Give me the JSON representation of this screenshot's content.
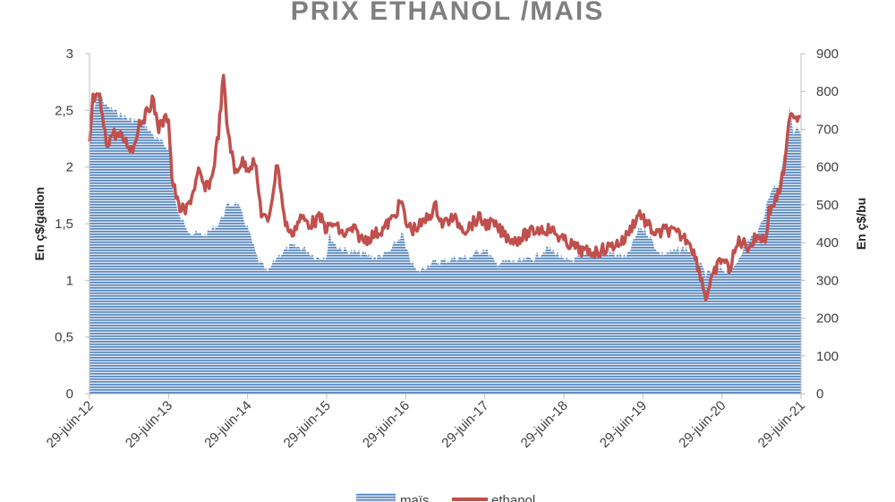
{
  "chart_data": {
    "type": "line",
    "title": "PRIX ETHANOL /MAÏS",
    "x_tick_labels": [
      "29-juin-12",
      "29-juin-13",
      "29-juin-14",
      "29-juin-15",
      "29-juin-16",
      "29-juin-17",
      "29-juin-18",
      "29-juin-19",
      "29-juin-20",
      "29-juin-21"
    ],
    "x_range": [
      "2012-06-29",
      "2021-06-29"
    ],
    "left_axis": {
      "label": "En ç$/gallon",
      "range": [
        0,
        3
      ],
      "ticks": [
        "0",
        "0,5",
        "1",
        "1,5",
        "2",
        "2,5",
        "3"
      ]
    },
    "right_axis": {
      "label": "En ç$/bu",
      "range": [
        0,
        900
      ],
      "ticks": [
        "0",
        "100",
        "200",
        "300",
        "400",
        "500",
        "600",
        "700",
        "800",
        "900"
      ]
    },
    "grid": false,
    "legend_position": "bottom",
    "series": [
      {
        "name": "maïs",
        "kind": "area",
        "axis": "right",
        "color": "#4f81bd",
        "points": [
          [
            "2012-06-29",
            700
          ],
          [
            "2012-08-10",
            800
          ],
          [
            "2012-09-15",
            760
          ],
          [
            "2012-11-01",
            745
          ],
          [
            "2013-01-01",
            725
          ],
          [
            "2013-03-01",
            720
          ],
          [
            "2013-05-01",
            675
          ],
          [
            "2013-06-29",
            650
          ],
          [
            "2013-07-20",
            540
          ],
          [
            "2013-08-15",
            470
          ],
          [
            "2013-10-15",
            425
          ],
          [
            "2013-12-15",
            420
          ],
          [
            "2014-02-15",
            450
          ],
          [
            "2014-04-01",
            500
          ],
          [
            "2014-05-10",
            505
          ],
          [
            "2014-06-29",
            440
          ],
          [
            "2014-08-15",
            355
          ],
          [
            "2014-09-30",
            320
          ],
          [
            "2014-11-15",
            365
          ],
          [
            "2015-01-15",
            390
          ],
          [
            "2015-03-15",
            385
          ],
          [
            "2015-05-15",
            360
          ],
          [
            "2015-06-29",
            365
          ],
          [
            "2015-07-10",
            420
          ],
          [
            "2015-08-15",
            390
          ],
          [
            "2015-10-15",
            375
          ],
          [
            "2015-12-15",
            370
          ],
          [
            "2016-02-15",
            360
          ],
          [
            "2016-04-15",
            375
          ],
          [
            "2016-06-15",
            425
          ],
          [
            "2016-06-29",
            380
          ],
          [
            "2016-08-20",
            320
          ],
          [
            "2016-10-15",
            345
          ],
          [
            "2016-12-15",
            350
          ],
          [
            "2017-02-15",
            360
          ],
          [
            "2017-04-15",
            360
          ],
          [
            "2017-06-29",
            385
          ],
          [
            "2017-08-15",
            345
          ],
          [
            "2017-10-15",
            350
          ],
          [
            "2017-12-15",
            350
          ],
          [
            "2018-02-15",
            360
          ],
          [
            "2018-04-15",
            385
          ],
          [
            "2018-06-01",
            370
          ],
          [
            "2018-06-29",
            350
          ],
          [
            "2018-08-20",
            355
          ],
          [
            "2018-10-15",
            365
          ],
          [
            "2018-12-15",
            375
          ],
          [
            "2019-02-15",
            370
          ],
          [
            "2019-04-15",
            360
          ],
          [
            "2019-06-15",
            440
          ],
          [
            "2019-07-15",
            430
          ],
          [
            "2019-09-15",
            370
          ],
          [
            "2019-11-15",
            375
          ],
          [
            "2020-01-15",
            385
          ],
          [
            "2020-03-15",
            345
          ],
          [
            "2020-04-15",
            315
          ],
          [
            "2020-06-29",
            330
          ],
          [
            "2020-08-15",
            320
          ],
          [
            "2020-10-15",
            400
          ],
          [
            "2020-12-15",
            430
          ],
          [
            "2021-02-15",
            545
          ],
          [
            "2021-03-15",
            555
          ],
          [
            "2021-04-15",
            640
          ],
          [
            "2021-05-07",
            760
          ],
          [
            "2021-05-25",
            680
          ],
          [
            "2021-06-10",
            700
          ],
          [
            "2021-06-29",
            680
          ]
        ]
      },
      {
        "name": "ethanol",
        "kind": "line",
        "axis": "left",
        "color": "#c0504d",
        "points": [
          [
            "2012-06-29",
            2.2
          ],
          [
            "2012-07-15",
            2.6
          ],
          [
            "2012-08-15",
            2.6
          ],
          [
            "2012-09-15",
            2.2
          ],
          [
            "2012-10-15",
            2.3
          ],
          [
            "2012-12-01",
            2.25
          ],
          [
            "2013-01-15",
            2.15
          ],
          [
            "2013-02-15",
            2.4
          ],
          [
            "2013-03-15",
            2.45
          ],
          [
            "2013-04-15",
            2.6
          ],
          [
            "2013-05-15",
            2.35
          ],
          [
            "2013-06-29",
            2.45
          ],
          [
            "2013-07-15",
            1.9
          ],
          [
            "2013-08-15",
            1.65
          ],
          [
            "2013-09-15",
            1.6
          ],
          [
            "2013-10-15",
            1.75
          ],
          [
            "2013-11-15",
            1.95
          ],
          [
            "2013-12-15",
            1.8
          ],
          [
            "2014-01-15",
            1.9
          ],
          [
            "2014-02-15",
            2.3
          ],
          [
            "2014-03-10",
            2.8
          ],
          [
            "2014-03-25",
            2.4
          ],
          [
            "2014-05-01",
            1.95
          ],
          [
            "2014-06-01",
            2.05
          ],
          [
            "2014-06-29",
            2.0
          ],
          [
            "2014-08-01",
            2.05
          ],
          [
            "2014-09-01",
            1.6
          ],
          [
            "2014-10-01",
            1.5
          ],
          [
            "2014-11-15",
            2.05
          ],
          [
            "2014-12-15",
            1.55
          ],
          [
            "2015-01-15",
            1.4
          ],
          [
            "2015-03-01",
            1.55
          ],
          [
            "2015-04-15",
            1.5
          ],
          [
            "2015-06-01",
            1.55
          ],
          [
            "2015-06-29",
            1.45
          ],
          [
            "2015-08-01",
            1.5
          ],
          [
            "2015-09-15",
            1.4
          ],
          [
            "2015-11-01",
            1.45
          ],
          [
            "2015-12-15",
            1.35
          ],
          [
            "2016-02-01",
            1.4
          ],
          [
            "2016-03-15",
            1.45
          ],
          [
            "2016-05-01",
            1.55
          ],
          [
            "2016-06-10",
            1.7
          ],
          [
            "2016-06-29",
            1.5
          ],
          [
            "2016-08-01",
            1.45
          ],
          [
            "2016-09-15",
            1.5
          ],
          [
            "2016-11-15",
            1.65
          ],
          [
            "2016-12-15",
            1.5
          ],
          [
            "2017-02-01",
            1.55
          ],
          [
            "2017-04-01",
            1.45
          ],
          [
            "2017-06-01",
            1.55
          ],
          [
            "2017-06-29",
            1.5
          ],
          [
            "2017-08-01",
            1.5
          ],
          [
            "2017-10-01",
            1.4
          ],
          [
            "2017-11-15",
            1.35
          ],
          [
            "2018-01-01",
            1.4
          ],
          [
            "2018-03-01",
            1.45
          ],
          [
            "2018-05-01",
            1.45
          ],
          [
            "2018-06-29",
            1.35
          ],
          [
            "2018-08-15",
            1.3
          ],
          [
            "2018-10-01",
            1.25
          ],
          [
            "2018-12-01",
            1.25
          ],
          [
            "2019-02-01",
            1.3
          ],
          [
            "2019-04-01",
            1.35
          ],
          [
            "2019-06-15",
            1.6
          ],
          [
            "2019-07-15",
            1.5
          ],
          [
            "2019-09-01",
            1.4
          ],
          [
            "2019-10-15",
            1.45
          ],
          [
            "2019-12-15",
            1.4
          ],
          [
            "2020-02-01",
            1.35
          ],
          [
            "2020-03-15",
            1.1
          ],
          [
            "2020-04-15",
            0.85
          ],
          [
            "2020-06-01",
            1.1
          ],
          [
            "2020-06-29",
            1.2
          ],
          [
            "2020-08-01",
            1.1
          ],
          [
            "2020-09-15",
            1.35
          ],
          [
            "2020-11-01",
            1.3
          ],
          [
            "2020-12-15",
            1.4
          ],
          [
            "2021-01-15",
            1.35
          ],
          [
            "2021-02-01",
            1.6
          ],
          [
            "2021-03-15",
            1.75
          ],
          [
            "2021-04-15",
            2.0
          ],
          [
            "2021-05-10",
            2.5
          ],
          [
            "2021-06-01",
            2.45
          ],
          [
            "2021-06-29",
            2.45
          ]
        ]
      }
    ]
  },
  "colors": {
    "axis": "#bfbfbf",
    "title": "#7f7f7f",
    "text": "#404040",
    "corn": "#4f81bd",
    "ethanol": "#c0504d"
  }
}
